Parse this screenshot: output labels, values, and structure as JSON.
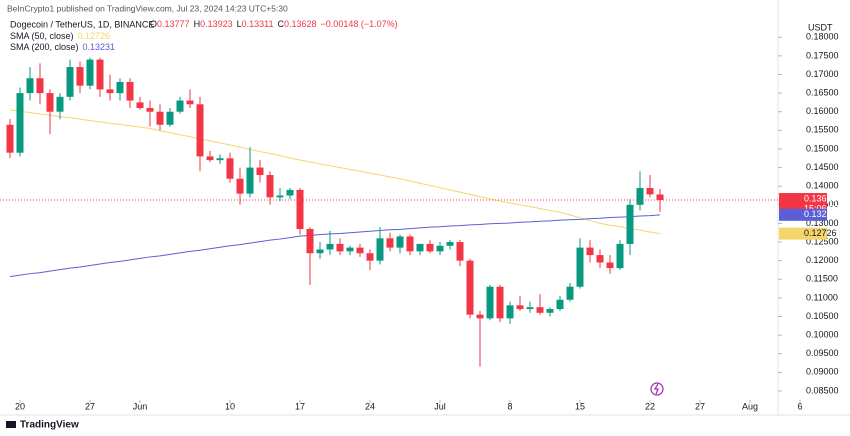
{
  "chart_data": {
    "type": "candlestick",
    "publisher": "BeInCrypto1 published on TradingView.com, Jul 23, 2024 14:23 UTC+5:30",
    "title": "Dogecoin / TetherUS, 1D, BINANCE",
    "ohlc_legend": [
      {
        "label": "O",
        "value": "0.13777"
      },
      {
        "label": "H",
        "value": "0.13923"
      },
      {
        "label": "L",
        "value": "0.13311"
      },
      {
        "label": "C",
        "value": "0.13628"
      }
    ],
    "change": "−0.00148 (−1.07%)",
    "currency": "USDT",
    "price_tag": "0.13628",
    "countdown": "15:06:53",
    "brand": "TradingView",
    "up_color": "#089981",
    "down_color": "#f23645",
    "x": [
      "2024-05-19",
      "2024-05-20",
      "2024-05-21",
      "2024-05-22",
      "2024-05-23",
      "2024-05-24",
      "2024-05-25",
      "2024-05-26",
      "2024-05-27",
      "2024-05-28",
      "2024-05-29",
      "2024-05-30",
      "2024-05-31",
      "2024-06-01",
      "2024-06-02",
      "2024-06-03",
      "2024-06-04",
      "2024-06-05",
      "2024-06-06",
      "2024-06-07",
      "2024-06-08",
      "2024-06-09",
      "2024-06-10",
      "2024-06-11",
      "2024-06-12",
      "2024-06-13",
      "2024-06-14",
      "2024-06-15",
      "2024-06-16",
      "2024-06-17",
      "2024-06-18",
      "2024-06-19",
      "2024-06-20",
      "2024-06-21",
      "2024-06-22",
      "2024-06-23",
      "2024-06-24",
      "2024-06-25",
      "2024-06-26",
      "2024-06-27",
      "2024-06-28",
      "2024-06-29",
      "2024-06-30",
      "2024-07-01",
      "2024-07-02",
      "2024-07-03",
      "2024-07-04",
      "2024-07-05",
      "2024-07-06",
      "2024-07-07",
      "2024-07-08",
      "2024-07-09",
      "2024-07-10",
      "2024-07-11",
      "2024-07-12",
      "2024-07-13",
      "2024-07-14",
      "2024-07-15",
      "2024-07-16",
      "2024-07-17",
      "2024-07-18",
      "2024-07-19",
      "2024-07-20",
      "2024-07-21",
      "2024-07-22",
      "2024-07-23"
    ],
    "open": [
      0.1565,
      0.149,
      0.165,
      0.169,
      0.165,
      0.16,
      0.164,
      0.172,
      0.167,
      0.174,
      0.166,
      0.165,
      0.168,
      0.1625,
      0.161,
      0.16,
      0.1565,
      0.16,
      0.163,
      0.162,
      0.148,
      0.147,
      0.1475,
      0.142,
      0.138,
      0.145,
      0.143,
      0.137,
      0.1375,
      0.139,
      0.1285,
      0.122,
      0.123,
      0.1245,
      0.1225,
      0.1235,
      0.122,
      0.12,
      0.126,
      0.1235,
      0.1265,
      0.1225,
      0.1245,
      0.1225,
      0.124,
      0.125,
      0.12,
      0.1055,
      0.1045,
      0.113,
      0.1045,
      0.108,
      0.107,
      0.1075,
      0.106,
      0.107,
      0.1095,
      0.113,
      0.1235,
      0.1215,
      0.1195,
      0.118,
      0.1245,
      0.135,
      0.1395,
      0.13777
    ],
    "high": [
      0.158,
      0.1665,
      0.172,
      0.173,
      0.166,
      0.165,
      0.174,
      0.1735,
      0.1745,
      0.1745,
      0.17,
      0.169,
      0.169,
      0.164,
      0.163,
      0.162,
      0.161,
      0.164,
      0.166,
      0.164,
      0.1495,
      0.1485,
      0.149,
      0.145,
      0.1505,
      0.147,
      0.144,
      0.1395,
      0.1395,
      0.1395,
      0.129,
      0.125,
      0.128,
      0.126,
      0.124,
      0.1245,
      0.123,
      0.129,
      0.1275,
      0.127,
      0.127,
      0.124,
      0.1255,
      0.125,
      0.1255,
      0.1255,
      0.1205,
      0.1065,
      0.1135,
      0.1135,
      0.109,
      0.1105,
      0.109,
      0.111,
      0.1075,
      0.1105,
      0.114,
      0.126,
      0.1255,
      0.123,
      0.1215,
      0.1255,
      0.1365,
      0.144,
      0.143,
      0.13923
    ],
    "low": [
      0.1475,
      0.148,
      0.163,
      0.162,
      0.154,
      0.158,
      0.163,
      0.165,
      0.166,
      0.164,
      0.163,
      0.163,
      0.161,
      0.1605,
      0.156,
      0.155,
      0.156,
      0.1595,
      0.161,
      0.144,
      0.1465,
      0.146,
      0.141,
      0.135,
      0.137,
      0.141,
      0.135,
      0.136,
      0.1365,
      0.127,
      0.1135,
      0.1205,
      0.1215,
      0.1215,
      0.1215,
      0.121,
      0.1175,
      0.119,
      0.1225,
      0.122,
      0.1215,
      0.1215,
      0.122,
      0.1215,
      0.123,
      0.1185,
      0.1045,
      0.0915,
      0.104,
      0.1035,
      0.103,
      0.1065,
      0.106,
      0.1055,
      0.105,
      0.1065,
      0.109,
      0.1125,
      0.1195,
      0.118,
      0.1165,
      0.1175,
      0.1215,
      0.1335,
      0.137,
      0.13311
    ],
    "close": [
      0.149,
      0.165,
      0.169,
      0.165,
      0.16,
      0.164,
      0.172,
      0.167,
      0.174,
      0.166,
      0.165,
      0.168,
      0.163,
      0.161,
      0.16,
      0.1565,
      0.16,
      0.163,
      0.162,
      0.148,
      0.147,
      0.1475,
      0.142,
      0.138,
      0.145,
      0.143,
      0.137,
      0.1375,
      0.139,
      0.1285,
      0.122,
      0.123,
      0.1245,
      0.1225,
      0.1235,
      0.122,
      0.12,
      0.126,
      0.1235,
      0.1265,
      0.1225,
      0.1245,
      0.1225,
      0.124,
      0.125,
      0.12,
      0.1055,
      0.1045,
      0.113,
      0.1045,
      0.108,
      0.107,
      0.1075,
      0.106,
      0.107,
      0.1095,
      0.113,
      0.1235,
      0.1215,
      0.1195,
      0.118,
      0.1245,
      0.135,
      0.1395,
      0.1378,
      0.13628
    ],
    "series": [
      {
        "name": "SMA (50, close)",
        "color": "#f5d56b",
        "last_label": "0.12726",
        "values": [
          0.1605,
          0.1601,
          0.1598,
          0.1594,
          0.1591,
          0.1587,
          0.1584,
          0.158,
          0.1576,
          0.1573,
          0.1569,
          0.1566,
          0.1562,
          0.1559,
          0.1555,
          0.1549,
          0.1544,
          0.1538,
          0.1533,
          0.1527,
          0.1522,
          0.1516,
          0.1511,
          0.1505,
          0.1499,
          0.1493,
          0.1488,
          0.1482,
          0.1476,
          0.147,
          0.1465,
          0.146,
          0.1455,
          0.145,
          0.1445,
          0.144,
          0.1435,
          0.143,
          0.1425,
          0.142,
          0.1414,
          0.1408,
          0.1402,
          0.1396,
          0.139,
          0.1384,
          0.1378,
          0.1372,
          0.1366,
          0.136,
          0.1355,
          0.135,
          0.1345,
          0.134,
          0.1335,
          0.133,
          0.1323,
          0.1315,
          0.1308,
          0.13,
          0.1295,
          0.1291,
          0.1286,
          0.1282,
          0.1277,
          0.12726
        ]
      },
      {
        "name": "SMA (200, close)",
        "color": "#5b5fd6",
        "last_label": "0.13231",
        "values": [
          0.1157,
          0.1161,
          0.1165,
          0.1168,
          0.1172,
          0.1176,
          0.118,
          0.1183,
          0.1187,
          0.1191,
          0.1195,
          0.1198,
          0.1202,
          0.1206,
          0.121,
          0.1213,
          0.1217,
          0.1221,
          0.1225,
          0.1228,
          0.1232,
          0.1236,
          0.124,
          0.1243,
          0.1247,
          0.1251,
          0.1255,
          0.1258,
          0.1262,
          0.1266,
          0.1268,
          0.127,
          0.1272,
          0.1273,
          0.1275,
          0.1277,
          0.1279,
          0.1281,
          0.1283,
          0.1284,
          0.1286,
          0.1288,
          0.129,
          0.1291,
          0.1293,
          0.1294,
          0.1296,
          0.1297,
          0.1299,
          0.13,
          0.1301,
          0.1303,
          0.1304,
          0.1306,
          0.1307,
          0.1309,
          0.131,
          0.1311,
          0.1313,
          0.1314,
          0.1316,
          0.1317,
          0.1318,
          0.132,
          0.1321,
          0.13231
        ]
      }
    ],
    "ylim": [
      0.0815,
      0.1841
    ],
    "yticks": [
      {
        "value": 0.085,
        "label": "0.08500"
      },
      {
        "value": 0.09,
        "label": "0.09000"
      },
      {
        "value": 0.095,
        "label": "0.09500"
      },
      {
        "value": 0.1,
        "label": "0.10000"
      },
      {
        "value": 0.105,
        "label": "0.10500"
      },
      {
        "value": 0.11,
        "label": "0.11000"
      },
      {
        "value": 0.115,
        "label": "0.11500"
      },
      {
        "value": 0.12,
        "label": "0.12000"
      },
      {
        "value": 0.125,
        "label": "0.12500"
      },
      {
        "value": 0.13,
        "label": "0.13000"
      },
      {
        "value": 0.135,
        "label": "0.13500"
      },
      {
        "value": 0.14,
        "label": "0.14000"
      },
      {
        "value": 0.145,
        "label": "0.14500"
      },
      {
        "value": 0.15,
        "label": "0.15000"
      },
      {
        "value": 0.155,
        "label": "0.15500"
      },
      {
        "value": 0.16,
        "label": "0.16000"
      },
      {
        "value": 0.165,
        "label": "0.16500"
      },
      {
        "value": 0.17,
        "label": "0.17000"
      },
      {
        "value": 0.175,
        "label": "0.17500"
      },
      {
        "value": 0.18,
        "label": "0.18000"
      }
    ],
    "xticks": [
      {
        "value": "2024-05-20",
        "label": "20"
      },
      {
        "value": "2024-05-27",
        "label": "27"
      },
      {
        "value": "2024-06-01",
        "label": "Jun"
      },
      {
        "value": "2024-06-10",
        "label": "10"
      },
      {
        "value": "2024-06-17",
        "label": "17"
      },
      {
        "value": "2024-06-24",
        "label": "24"
      },
      {
        "value": "2024-07-01",
        "label": "Jul"
      },
      {
        "value": "2024-07-08",
        "label": "8"
      },
      {
        "value": "2024-07-15",
        "label": "15"
      },
      {
        "value": "2024-07-22",
        "label": "22"
      },
      {
        "value": "2024-07-27",
        "label": "27"
      },
      {
        "value": "2024-08-01",
        "label": "Aug"
      },
      {
        "value": "2024-08-06",
        "label": "6"
      }
    ]
  }
}
